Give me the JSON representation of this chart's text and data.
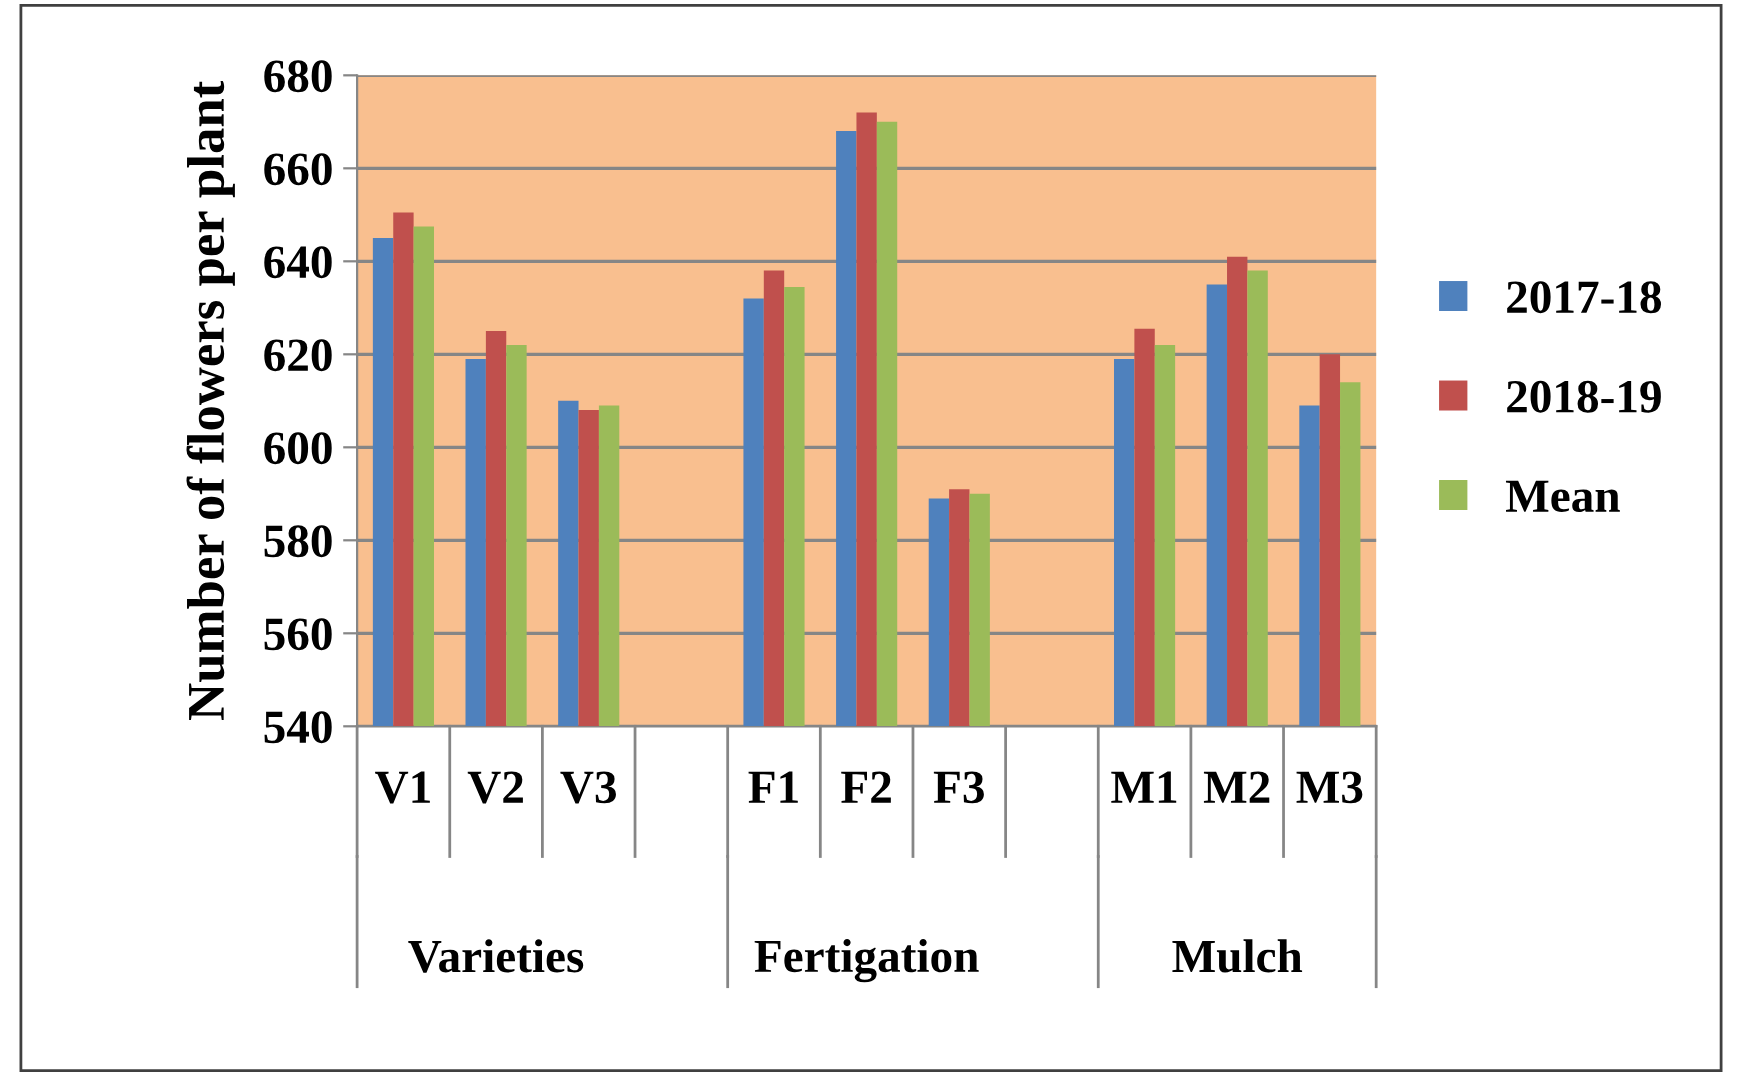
{
  "chart_data": {
    "type": "bar",
    "ylabel": "Number of flowers per plant",
    "categories": [
      "V1",
      "V2",
      "V3",
      null,
      "F1",
      "F2",
      "F3",
      null,
      "M1",
      "M2",
      "M3"
    ],
    "series": [
      {
        "name": "2017-18",
        "color": "#4f81bd",
        "values": [
          645,
          619,
          610,
          null,
          632,
          668,
          589,
          null,
          619,
          635,
          609
        ]
      },
      {
        "name": "2018-19",
        "color": "#c0504d",
        "values": [
          650.5,
          625,
          608,
          null,
          638,
          672,
          591,
          null,
          625.5,
          641,
          620
        ]
      },
      {
        "name": "Mean",
        "color": "#9bbb59",
        "values": [
          647.5,
          622,
          609,
          null,
          634.5,
          670,
          590,
          null,
          622,
          638,
          614
        ]
      }
    ],
    "annotations": [
      "Varieties",
      "Fertigation",
      "Mulch"
    ],
    "ylim": [
      540,
      680
    ],
    "yticks": [
      540,
      560,
      580,
      600,
      620,
      640,
      660,
      680
    ],
    "grid": "y",
    "legend": "right"
  }
}
